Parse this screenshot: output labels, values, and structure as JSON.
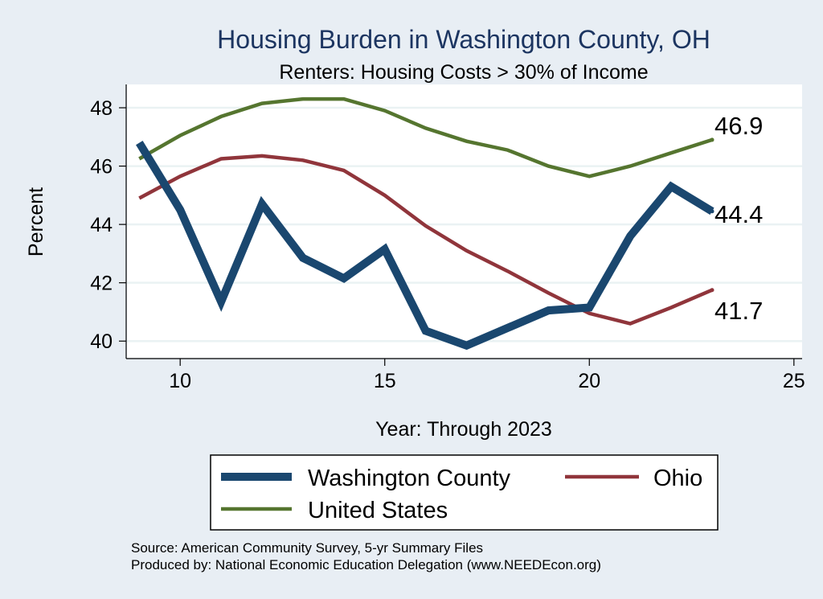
{
  "chart_data": {
    "type": "line",
    "title": "Housing Burden in Washington County, OH",
    "subtitle": "Renters: Housing Costs > 30% of Income",
    "xlabel": "Year: Through 2023",
    "ylabel": "Percent",
    "xlim": [
      8.7,
      25.2
    ],
    "ylim": [
      39.4,
      48.8
    ],
    "xticks": [
      10,
      15,
      20,
      25
    ],
    "yticks": [
      40,
      42,
      44,
      46,
      48
    ],
    "grid": true,
    "legend_position": "bottom",
    "series": [
      {
        "name": "Washington County",
        "color": "#1a476f",
        "width": 10,
        "x": [
          9,
          10,
          11,
          12,
          13,
          14,
          15,
          16,
          17,
          18,
          19,
          20,
          21,
          22,
          23
        ],
        "values": [
          46.8,
          44.5,
          41.35,
          44.7,
          42.85,
          42.15,
          43.15,
          40.35,
          39.85,
          40.45,
          41.05,
          41.15,
          43.6,
          45.3,
          44.45
        ],
        "end_label": "44.4"
      },
      {
        "name": "Ohio",
        "color": "#90353b",
        "width": 4.5,
        "x": [
          9,
          10,
          11,
          12,
          13,
          14,
          15,
          16,
          17,
          18,
          19,
          20,
          21,
          22,
          23
        ],
        "values": [
          44.9,
          45.65,
          46.25,
          46.35,
          46.2,
          45.85,
          45.0,
          43.95,
          43.1,
          42.4,
          41.65,
          40.95,
          40.6,
          41.15,
          41.75
        ],
        "end_label": "41.7"
      },
      {
        "name": "United States",
        "color": "#55752f",
        "width": 4.5,
        "x": [
          9,
          10,
          11,
          12,
          13,
          14,
          15,
          16,
          17,
          18,
          19,
          20,
          21,
          22,
          23
        ],
        "values": [
          46.25,
          47.05,
          47.7,
          48.15,
          48.3,
          48.3,
          47.9,
          47.3,
          46.85,
          46.55,
          46.0,
          45.65,
          46.0,
          46.45,
          46.9
        ],
        "end_label": "46.9"
      }
    ]
  },
  "notes": {
    "source": "Source: American Community Survey, 5-yr Summary Files",
    "produced_by": "Produced by: National Economic Education Delegation (www.NEEDEcon.org)"
  }
}
